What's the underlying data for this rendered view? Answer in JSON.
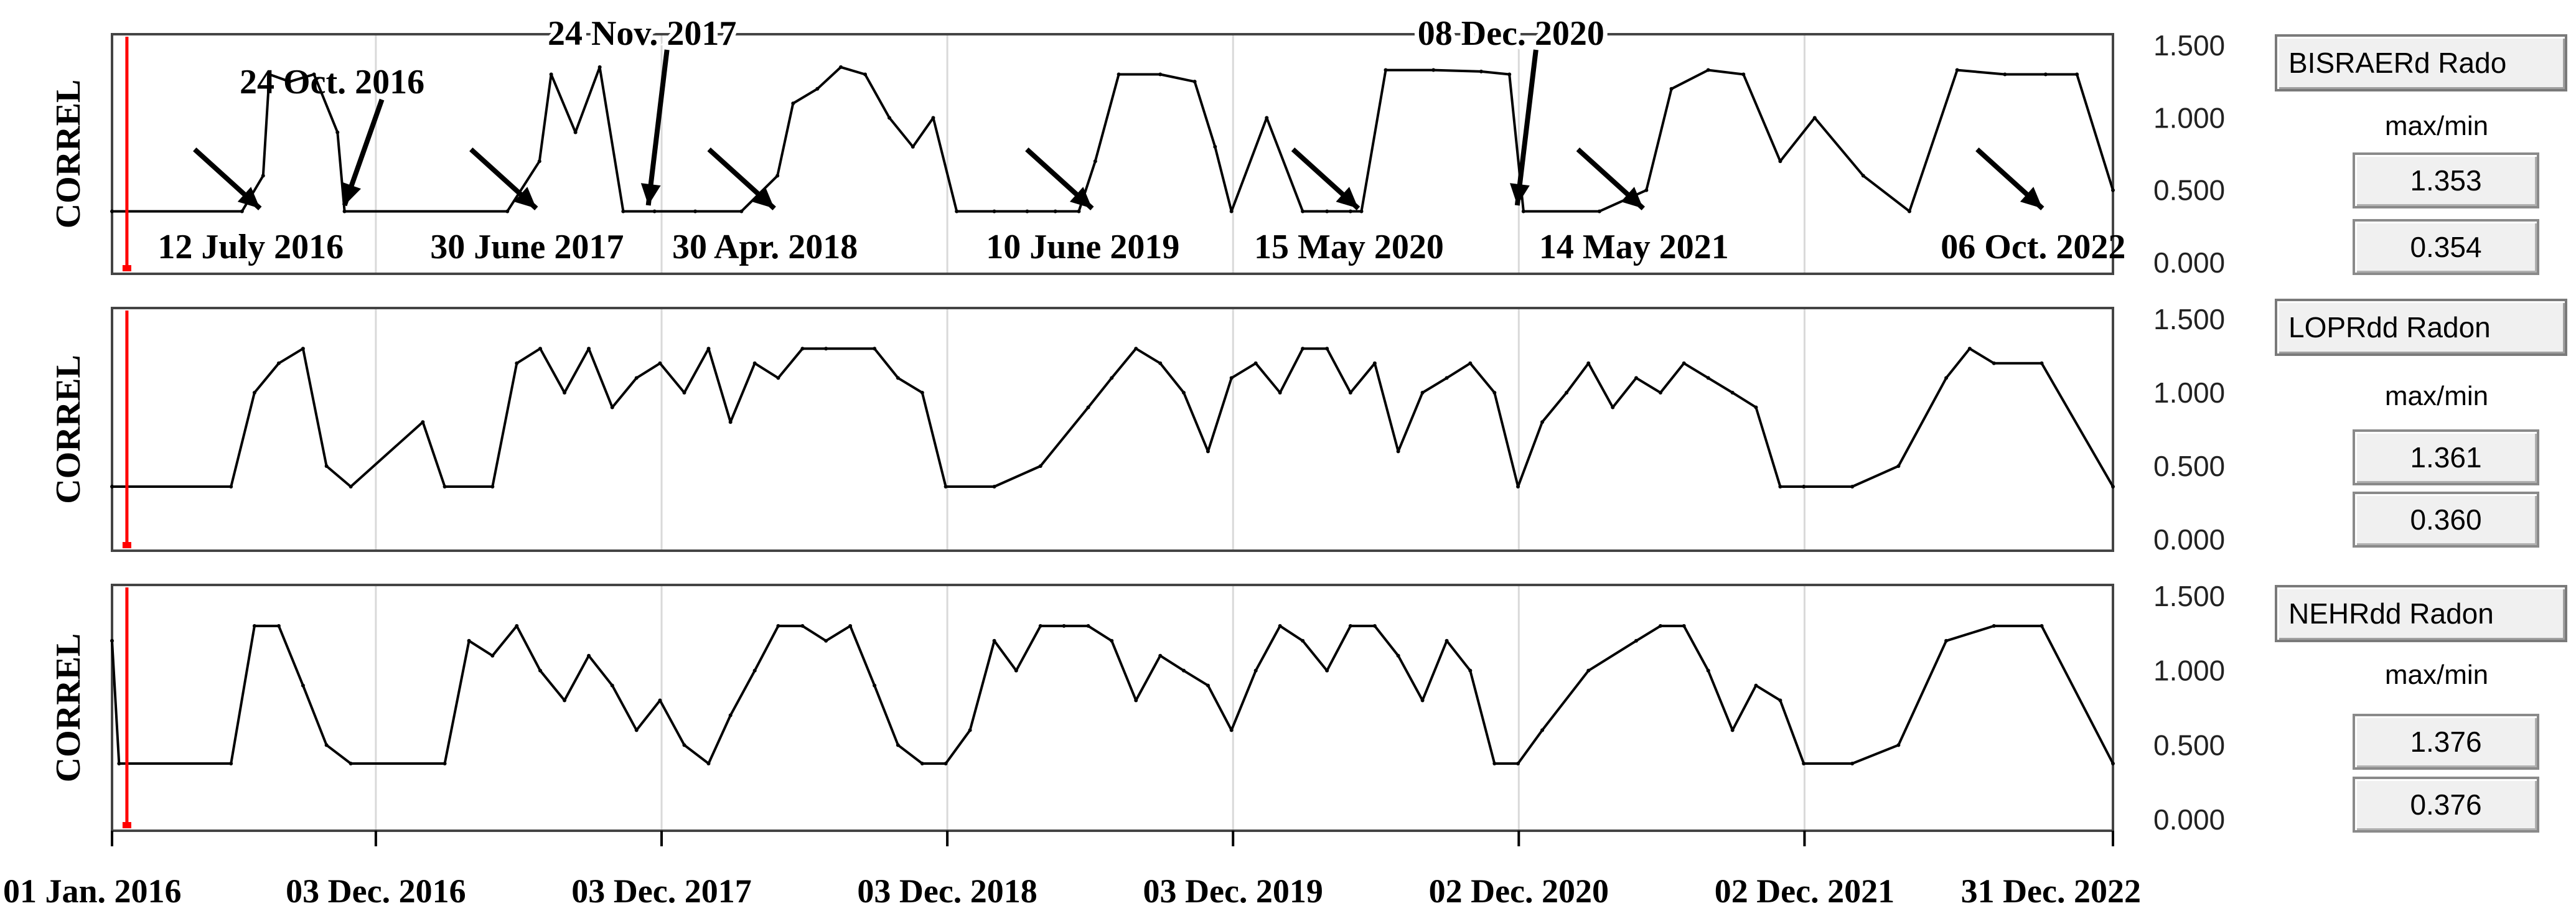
{
  "chart_data": [
    {
      "type": "line",
      "ylabel": "CORREL",
      "yticks": [
        "0.000",
        "0.500",
        "1.000",
        "1.500"
      ],
      "ylim": [
        0,
        1.5
      ],
      "station": "BISRAERd Rado",
      "max_min_label": "max/min",
      "max": "1.353",
      "min": "0.354",
      "annotations": [
        {
          "text": "12 July 2016",
          "date": "2016-07-12"
        },
        {
          "text": "24 Oct. 2016",
          "date": "2016-10-24"
        },
        {
          "text": "30 June 2017",
          "date": "2017-06-30"
        },
        {
          "text": "24 Nov. 2017",
          "date": "2017-11-24"
        },
        {
          "text": "30 Apr. 2018",
          "date": "2018-04-30"
        },
        {
          "text": "10 June 2019",
          "date": "2019-06-10"
        },
        {
          "text": "15 May 2020",
          "date": "2020-05-15"
        },
        {
          "text": "08 Dec. 2020",
          "date": "2020-12-08"
        },
        {
          "text": "14 May 2021",
          "date": "2021-05-14"
        },
        {
          "text": "06 Oct. 2022",
          "date": "2022-10-06"
        }
      ],
      "series": [
        {
          "x": [
            "2016-01-01",
            "2016-06-15",
            "2016-07-12",
            "2016-07-20",
            "2016-08-15",
            "2016-09-15",
            "2016-10-15",
            "2016-10-24",
            "2017-05-20",
            "2017-06-30",
            "2017-07-15",
            "2017-08-15",
            "2017-09-15",
            "2017-10-15",
            "2017-11-24",
            "2018-01-15",
            "2018-03-15",
            "2018-04-30",
            "2018-05-20",
            "2018-06-20",
            "2018-07-20",
            "2018-08-20",
            "2018-09-20",
            "2018-10-20",
            "2018-11-15",
            "2018-12-15",
            "2019-02-01",
            "2019-03-15",
            "2019-04-20",
            "2019-05-20",
            "2019-06-10",
            "2019-07-10",
            "2019-09-01",
            "2019-10-15",
            "2019-11-10",
            "2019-12-01",
            "2020-01-15",
            "2020-03-01",
            "2020-04-01",
            "2020-05-01",
            "2020-05-15",
            "2020-06-15",
            "2020-08-15",
            "2020-10-15",
            "2020-11-20",
            "2020-12-08",
            "2021-03-15",
            "2021-05-14",
            "2021-06-15",
            "2021-08-01",
            "2021-09-15",
            "2021-11-01",
            "2021-12-15",
            "2022-02-15",
            "2022-04-15",
            "2022-06-15",
            "2022-08-15",
            "2022-10-06",
            "2022-11-15",
            "2022-12-31"
          ],
          "values": [
            0.354,
            0.354,
            0.6,
            1.3,
            1.25,
            1.3,
            0.9,
            0.354,
            0.354,
            0.7,
            1.3,
            0.9,
            1.35,
            0.354,
            0.354,
            0.354,
            0.354,
            0.6,
            1.1,
            1.2,
            1.35,
            1.3,
            1.0,
            0.8,
            1.0,
            0.354,
            0.354,
            0.354,
            0.354,
            0.354,
            0.7,
            1.3,
            1.3,
            1.25,
            0.8,
            0.354,
            1.0,
            0.354,
            0.354,
            0.354,
            0.354,
            1.33,
            1.33,
            1.32,
            1.3,
            0.354,
            0.354,
            0.5,
            1.2,
            1.33,
            1.3,
            0.7,
            1.0,
            0.6,
            0.354,
            1.33,
            1.3,
            1.3,
            1.3,
            0.5
          ]
        }
      ]
    },
    {
      "type": "line",
      "ylabel": "CORREL",
      "yticks": [
        "0.000",
        "0.500",
        "1.000",
        "1.500"
      ],
      "ylim": [
        0,
        1.5
      ],
      "station": "LOPRdd Radon",
      "max_min_label": "max/min",
      "max": "1.361",
      "min": "0.360",
      "series": [
        {
          "x": [
            "2016-01-01",
            "2016-06-01",
            "2016-07-01",
            "2016-08-01",
            "2016-09-01",
            "2016-10-01",
            "2016-11-01",
            "2017-02-01",
            "2017-03-01",
            "2017-05-01",
            "2017-06-01",
            "2017-07-01",
            "2017-08-01",
            "2017-09-01",
            "2017-10-01",
            "2017-11-01",
            "2017-12-01",
            "2018-01-01",
            "2018-02-01",
            "2018-03-01",
            "2018-04-01",
            "2018-05-01",
            "2018-06-01",
            "2018-07-01",
            "2018-09-01",
            "2018-10-01",
            "2018-11-01",
            "2018-12-01",
            "2019-02-01",
            "2019-04-01",
            "2019-06-01",
            "2019-07-01",
            "2019-08-01",
            "2019-09-01",
            "2019-10-01",
            "2019-11-01",
            "2019-12-01",
            "2020-01-01",
            "2020-02-01",
            "2020-03-01",
            "2020-04-01",
            "2020-05-01",
            "2020-06-01",
            "2020-07-01",
            "2020-08-01",
            "2020-09-01",
            "2020-10-01",
            "2020-11-01",
            "2020-12-01",
            "2021-01-01",
            "2021-02-01",
            "2021-03-01",
            "2021-04-01",
            "2021-05-01",
            "2021-06-01",
            "2021-07-01",
            "2021-08-01",
            "2021-09-01",
            "2021-10-01",
            "2021-11-01",
            "2021-12-01",
            "2022-02-01",
            "2022-04-01",
            "2022-06-01",
            "2022-07-01",
            "2022-08-01",
            "2022-10-01",
            "2022-12-31"
          ],
          "values": [
            0.36,
            0.36,
            1.0,
            1.2,
            1.3,
            0.5,
            0.36,
            0.8,
            0.36,
            0.36,
            1.2,
            1.3,
            1.0,
            1.3,
            0.9,
            1.1,
            1.2,
            1.0,
            1.3,
            0.8,
            1.2,
            1.1,
            1.3,
            1.3,
            1.3,
            1.1,
            1.0,
            0.36,
            0.36,
            0.5,
            0.9,
            1.1,
            1.3,
            1.2,
            1.0,
            0.6,
            1.1,
            1.2,
            1.0,
            1.3,
            1.3,
            1.0,
            1.2,
            0.6,
            1.0,
            1.1,
            1.2,
            1.0,
            0.36,
            0.8,
            1.0,
            1.2,
            0.9,
            1.1,
            1.0,
            1.2,
            1.1,
            1.0,
            0.9,
            0.36,
            0.36,
            0.36,
            0.5,
            1.1,
            1.3,
            1.2,
            1.2,
            0.36
          ]
        }
      ]
    },
    {
      "type": "line",
      "ylabel": "CORREL",
      "yticks": [
        "0.000",
        "0.500",
        "1.000",
        "1.500"
      ],
      "ylim": [
        0,
        1.5
      ],
      "station": "NEHRdd Radon",
      "max_min_label": "max/min",
      "max": "1.376",
      "min": "0.376",
      "series": [
        {
          "x": [
            "2016-01-01",
            "2016-01-10",
            "2016-01-20",
            "2016-06-01",
            "2016-07-01",
            "2016-08-01",
            "2016-09-01",
            "2016-10-01",
            "2016-11-01",
            "2017-03-01",
            "2017-04-01",
            "2017-05-01",
            "2017-06-01",
            "2017-07-01",
            "2017-08-01",
            "2017-09-01",
            "2017-10-01",
            "2017-11-01",
            "2017-12-01",
            "2018-01-01",
            "2018-02-01",
            "2018-03-01",
            "2018-04-01",
            "2018-05-01",
            "2018-06-01",
            "2018-07-01",
            "2018-08-01",
            "2018-09-01",
            "2018-10-01",
            "2018-11-01",
            "2018-12-01",
            "2019-01-01",
            "2019-02-01",
            "2019-03-01",
            "2019-04-01",
            "2019-05-01",
            "2019-06-01",
            "2019-07-01",
            "2019-08-01",
            "2019-09-01",
            "2019-10-01",
            "2019-11-01",
            "2019-12-01",
            "2020-01-01",
            "2020-02-01",
            "2020-03-01",
            "2020-04-01",
            "2020-05-01",
            "2020-06-01",
            "2020-07-01",
            "2020-08-01",
            "2020-09-01",
            "2020-10-01",
            "2020-11-01",
            "2020-12-01",
            "2021-01-01",
            "2021-03-01",
            "2021-05-01",
            "2021-06-01",
            "2021-07-01",
            "2021-08-01",
            "2021-09-01",
            "2021-10-01",
            "2021-11-01",
            "2021-12-01",
            "2022-02-01",
            "2022-04-01",
            "2022-06-01",
            "2022-08-01",
            "2022-10-01",
            "2022-12-31"
          ],
          "values": [
            1.2,
            0.376,
            0.376,
            0.376,
            1.3,
            1.3,
            0.9,
            0.5,
            0.376,
            0.376,
            1.2,
            1.1,
            1.3,
            1.0,
            0.8,
            1.1,
            0.9,
            0.6,
            0.8,
            0.5,
            0.376,
            0.7,
            1.0,
            1.3,
            1.3,
            1.2,
            1.3,
            0.9,
            0.5,
            0.376,
            0.376,
            0.6,
            1.2,
            1.0,
            1.3,
            1.3,
            1.3,
            1.2,
            0.8,
            1.1,
            1.0,
            0.9,
            0.6,
            1.0,
            1.3,
            1.2,
            1.0,
            1.3,
            1.3,
            1.1,
            0.8,
            1.2,
            1.0,
            0.376,
            0.376,
            0.6,
            1.0,
            1.2,
            1.3,
            1.3,
            1.0,
            0.6,
            0.9,
            0.8,
            0.376,
            0.376,
            0.5,
            1.2,
            1.3,
            1.3,
            0.376
          ]
        }
      ]
    }
  ],
  "x_axis": {
    "start": "2016-01-01",
    "end": "2022-12-31",
    "tick_labels": [
      {
        "label": "01 Jan. 2016",
        "date": "2016-01-01"
      },
      {
        "label": "03 Dec. 2016",
        "date": "2016-12-03"
      },
      {
        "label": "03 Dec. 2017",
        "date": "2017-12-03"
      },
      {
        "label": "03 Dec. 2018",
        "date": "2018-12-03"
      },
      {
        "label": "03 Dec. 2019",
        "date": "2019-12-03"
      },
      {
        "label": "02 Dec. 2020",
        "date": "2020-12-02"
      },
      {
        "label": "02 Dec. 2021",
        "date": "2021-12-02"
      },
      {
        "label": "31 Dec. 2022",
        "date": "2022-12-31"
      }
    ]
  },
  "cursor_date": "2016-01-20",
  "colors": {
    "line": "#000000",
    "cursor": "#ff0000",
    "grid": "#d9d9d9",
    "frame": "#444444"
  }
}
